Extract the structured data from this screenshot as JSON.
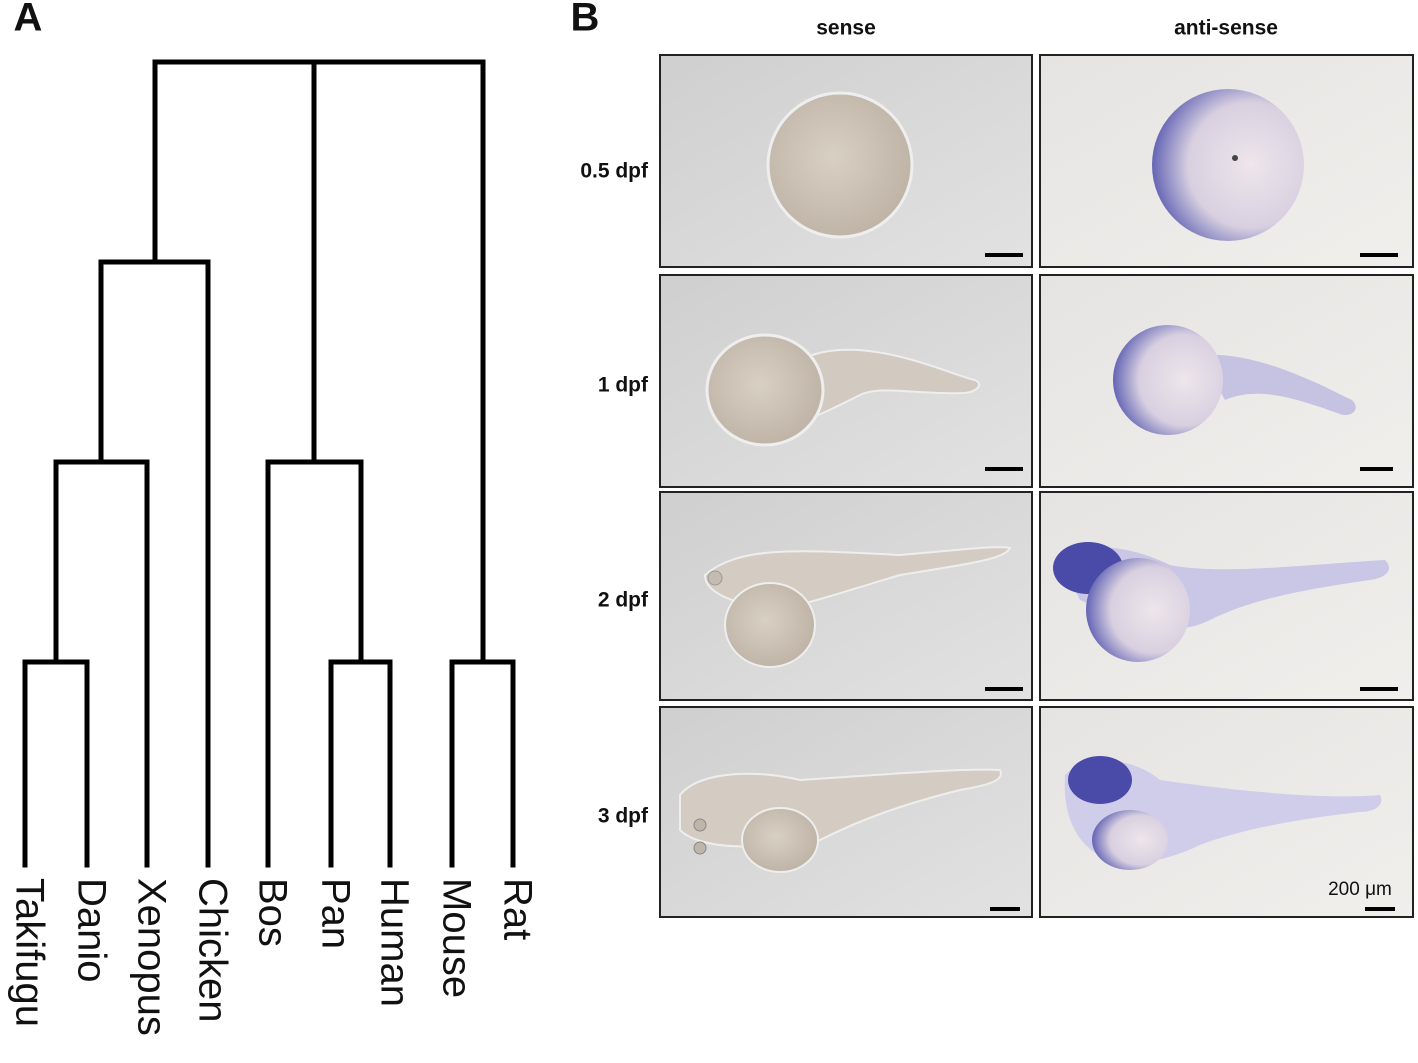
{
  "panel_a": {
    "label": "A",
    "leaves": [
      "Takifugu",
      "Danio",
      "Xenopus",
      "Chicken",
      "Bos",
      "Pan",
      "Human",
      "Mouse",
      "Rat"
    ]
  },
  "panel_b": {
    "label": "B",
    "columns": [
      "sense",
      "anti-sense"
    ],
    "rows": [
      "0.5 dpf",
      "1 dpf",
      "2 dpf",
      "3 dpf"
    ],
    "scale_label": "200 μm"
  }
}
